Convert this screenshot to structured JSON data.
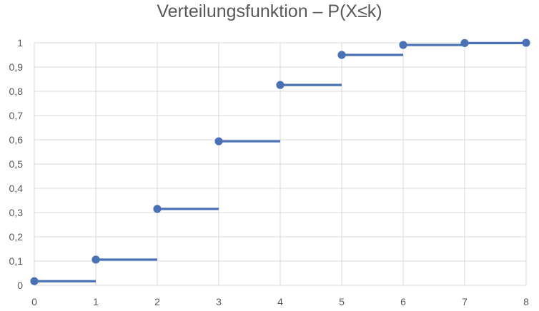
{
  "chart_data": {
    "type": "line",
    "title": "Verteilungsfunktion – P(X≤k)",
    "xlabel": "",
    "ylabel": "",
    "x": [
      0,
      1,
      2,
      3,
      4,
      5,
      6,
      7,
      8
    ],
    "y": [
      0.017,
      0.106,
      0.315,
      0.594,
      0.826,
      0.95,
      0.991,
      0.999,
      1.0
    ],
    "xlim": [
      0,
      8
    ],
    "ylim": [
      0,
      1
    ],
    "x_ticks": [
      "0",
      "1",
      "2",
      "3",
      "4",
      "5",
      "6",
      "7",
      "8"
    ],
    "y_ticks": [
      "0",
      "0,1",
      "0,2",
      "0,3",
      "0,4",
      "0,5",
      "0,6",
      "0,7",
      "0,8",
      "0,9",
      "1"
    ],
    "step": "post",
    "grid": true,
    "legend": "none",
    "series_color": "#4a70b5",
    "grid_color": "#d9d9d9"
  }
}
